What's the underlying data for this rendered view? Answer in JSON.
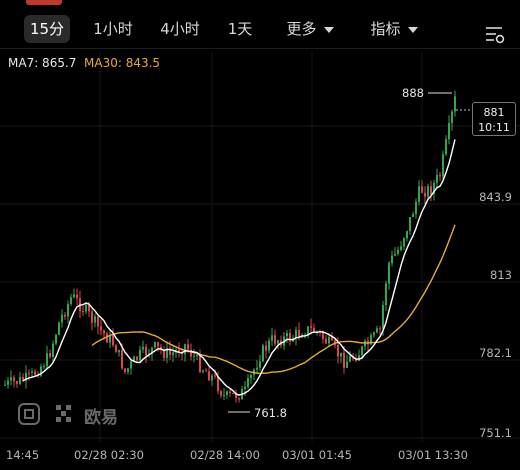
{
  "tabs": [
    {
      "label": "15分",
      "active": true
    },
    {
      "label": "1小时"
    },
    {
      "label": "4小时"
    },
    {
      "label": "1天"
    },
    {
      "label": "更多"
    },
    {
      "label": "指标"
    }
  ],
  "indicators": {
    "ma7": "MA7: 865.7",
    "ma30": "MA30: 843.5"
  },
  "price_axis": [
    "843.9",
    "813",
    "782.1",
    "751.1"
  ],
  "current": {
    "price": "881",
    "countdown": "10:11"
  },
  "markers": {
    "high": "888",
    "low": "761.8"
  },
  "time_axis": [
    "14:45",
    "02/28 02:30",
    "02/28 14:00",
    "03/01 01:45",
    "03/01 13:30"
  ],
  "watermark": {
    "brand": "欧易"
  },
  "colors": {
    "up": "#2fa84f",
    "down": "#e0454a",
    "ma7": "#ffffff",
    "ma30": "#e5a93a",
    "background": "#000000"
  },
  "chart_data": {
    "type": "candlestick",
    "y_axis_ticks": [
      843.9,
      813,
      782.1,
      751.1
    ],
    "high": 888,
    "low": 761.8,
    "last": 881,
    "series": [
      {
        "name": "MA7",
        "value": 865.7
      },
      {
        "name": "MA30",
        "value": 843.5
      }
    ]
  }
}
